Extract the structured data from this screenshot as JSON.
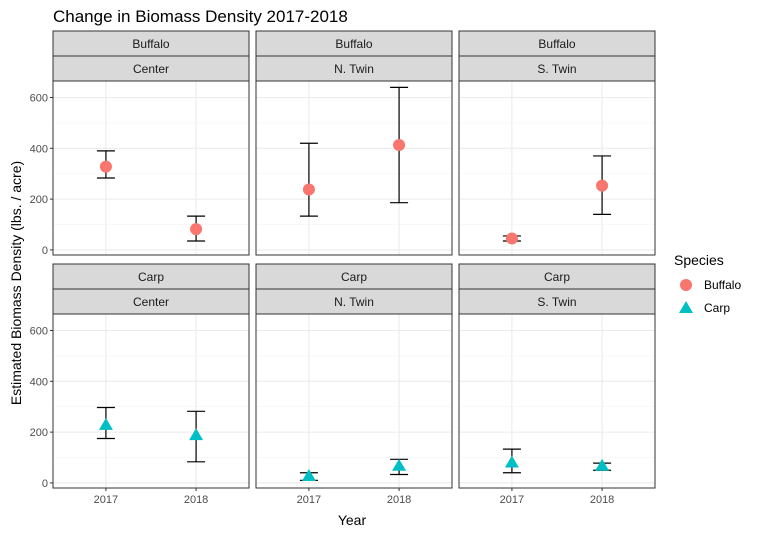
{
  "chart_data": {
    "type": "scatter",
    "title": "Change in Biomass Density 2017-2018",
    "xlabel": "Year",
    "ylabel": "Estimated Biomass Density (lbs. / acre)",
    "x_categories": [
      "2017",
      "2018"
    ],
    "y_ticks": [
      0,
      200,
      400,
      600
    ],
    "ylim": [
      -20,
      665
    ],
    "grid": true,
    "legend": {
      "title": "Species",
      "position": "right",
      "entries": [
        {
          "label": "Buffalo",
          "shape": "circle",
          "color": "#F8766D"
        },
        {
          "label": "Carp",
          "shape": "triangle",
          "color": "#00BFC4"
        }
      ]
    },
    "facets": [
      {
        "row": "Buffalo",
        "col": "Center",
        "species": "Buffalo",
        "points": [
          {
            "x": "2017",
            "y": 328,
            "ymin": 283,
            "ymax": 390
          },
          {
            "x": "2018",
            "y": 82,
            "ymin": 35,
            "ymax": 133
          }
        ]
      },
      {
        "row": "Buffalo",
        "col": "N. Twin",
        "species": "Buffalo",
        "points": [
          {
            "x": "2017",
            "y": 238,
            "ymin": 133,
            "ymax": 420
          },
          {
            "x": "2018",
            "y": 413,
            "ymin": 186,
            "ymax": 640
          }
        ]
      },
      {
        "row": "Buffalo",
        "col": "S. Twin",
        "species": "Buffalo",
        "points": [
          {
            "x": "2017",
            "y": 45,
            "ymin": 35,
            "ymax": 55
          },
          {
            "x": "2018",
            "y": 253,
            "ymin": 140,
            "ymax": 370
          }
        ]
      },
      {
        "row": "Carp",
        "col": "Center",
        "species": "Carp",
        "points": [
          {
            "x": "2017",
            "y": 228,
            "ymin": 175,
            "ymax": 297
          },
          {
            "x": "2018",
            "y": 188,
            "ymin": 83,
            "ymax": 282
          }
        ]
      },
      {
        "row": "Carp",
        "col": "N. Twin",
        "species": "Carp",
        "points": [
          {
            "x": "2017",
            "y": 27,
            "ymin": 10,
            "ymax": 40
          },
          {
            "x": "2018",
            "y": 67,
            "ymin": 33,
            "ymax": 93
          }
        ]
      },
      {
        "row": "Carp",
        "col": "S. Twin",
        "species": "Carp",
        "points": [
          {
            "x": "2017",
            "y": 80,
            "ymin": 40,
            "ymax": 133
          },
          {
            "x": "2018",
            "y": 67,
            "ymin": 50,
            "ymax": 78
          }
        ]
      }
    ],
    "colors": {
      "Buffalo": "#F8766D",
      "Carp": "#00BFC4"
    }
  }
}
